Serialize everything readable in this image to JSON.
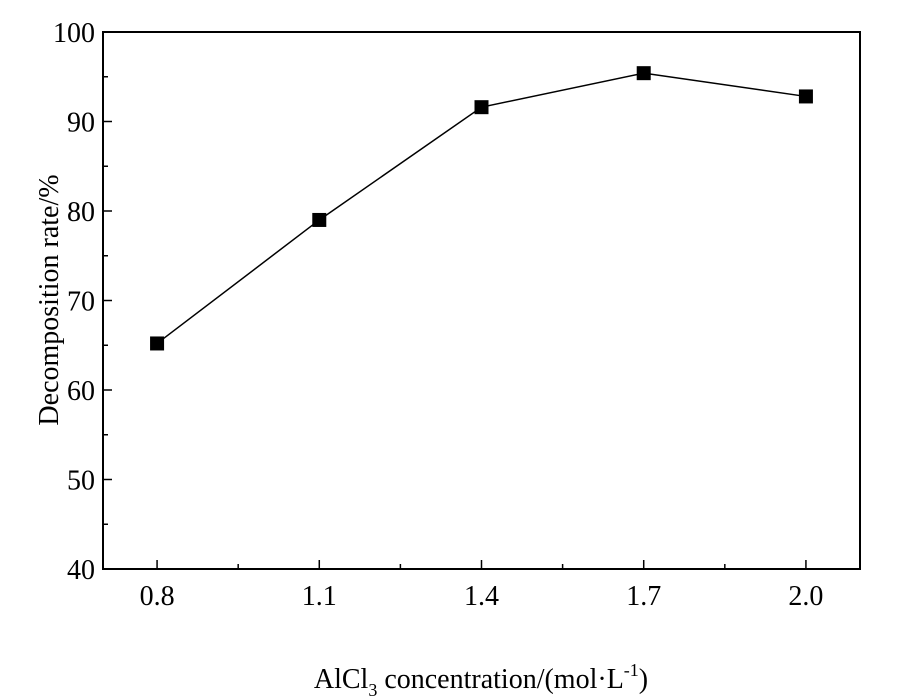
{
  "chart_data": {
    "type": "line",
    "xlabel_main": "AlCl",
    "xlabel_sub": "3",
    "xlabel_rest": " concentration/(mol·L",
    "xlabel_sup": "-1",
    "xlabel_end": ")",
    "ylabel": "Decomposition rate/%",
    "xlim": [
      0.7,
      2.1
    ],
    "ylim": [
      40,
      100
    ],
    "x_ticks": [
      0.8,
      1.1,
      1.4,
      1.7,
      2.0
    ],
    "x_tick_labels": [
      "0.8",
      "1.1",
      "1.4",
      "1.7",
      "2.0"
    ],
    "x_minor_ticks": [
      0.95,
      1.25,
      1.55,
      1.85
    ],
    "y_ticks": [
      40,
      50,
      60,
      70,
      80,
      90,
      100
    ],
    "y_tick_labels": [
      "40",
      "50",
      "60",
      "70",
      "80",
      "90",
      "100"
    ],
    "y_minor_ticks": [
      45,
      55,
      65,
      75,
      85,
      95
    ],
    "grid": false,
    "series": [
      {
        "marker": "square",
        "color": "#000000",
        "x": [
          0.8,
          1.1,
          1.4,
          1.7,
          2.0
        ],
        "y": [
          65.2,
          79.0,
          91.6,
          95.4,
          92.8
        ]
      }
    ]
  }
}
